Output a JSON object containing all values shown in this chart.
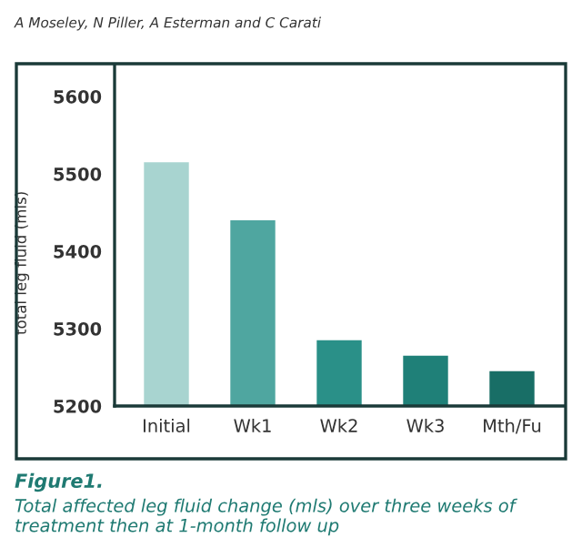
{
  "chart_data": {
    "type": "bar",
    "ylabel": "total leg fluid (mls)",
    "categories": [
      "Initial",
      "Wk1",
      "Wk2",
      "Wk3",
      "Mth/Fu"
    ],
    "values": [
      5515,
      5440,
      5285,
      5265,
      5245
    ],
    "colors": [
      "#a8d4d0",
      "#4fa6a0",
      "#2a9088",
      "#1f8078",
      "#186e66"
    ],
    "ylim": [
      5200,
      5640
    ],
    "yticks": [
      5200,
      5300,
      5400,
      5500,
      5600
    ],
    "grid": false,
    "legend": false,
    "annotations": [
      "A Moseley, N Piller, A Esterman and C Carati",
      "Figure1.",
      "Total affected leg fluid change (mls) over three weeks of treatment then at 1-month follow up"
    ]
  }
}
